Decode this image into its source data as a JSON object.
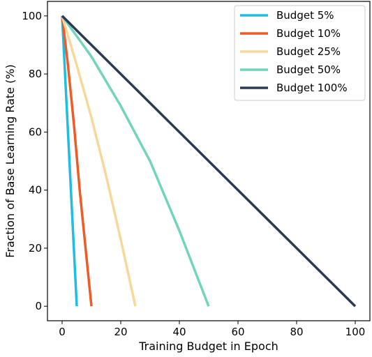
{
  "chart_data": {
    "type": "line",
    "title": "",
    "xlabel": "Training Budget in Epoch",
    "ylabel": "Fraction of Base Learning Rate (%)",
    "xlim": [
      -5,
      105
    ],
    "ylim": [
      -5,
      105
    ],
    "xticks": [
      0,
      20,
      40,
      60,
      80,
      100
    ],
    "yticks": [
      0,
      20,
      40,
      60,
      80,
      100
    ],
    "grid": false,
    "legend_position": "top-right",
    "series": [
      {
        "name": "Budget 5%",
        "color": "#1fbde0",
        "x": [
          0,
          1,
          2,
          3,
          4,
          5
        ],
        "y": [
          100,
          80,
          60,
          40,
          20,
          0
        ]
      },
      {
        "name": "Budget 10%",
        "color": "#f05a24",
        "x": [
          0,
          2,
          4,
          6,
          8,
          10
        ],
        "y": [
          100,
          83,
          63,
          40,
          20,
          0
        ]
      },
      {
        "name": "Budget 25%",
        "color": "#f8d898",
        "x": [
          0,
          5,
          10,
          15,
          20,
          25
        ],
        "y": [
          100,
          83,
          65,
          45,
          23,
          0
        ]
      },
      {
        "name": "Budget 50%",
        "color": "#72d4bb",
        "x": [
          0,
          10,
          20,
          30,
          40,
          50
        ],
        "y": [
          100,
          86,
          69,
          50,
          26,
          0
        ]
      },
      {
        "name": "Budget 100%",
        "color": "#2a3a55",
        "x": [
          0,
          20,
          40,
          60,
          80,
          100
        ],
        "y": [
          100,
          80,
          60,
          40,
          20,
          0
        ]
      }
    ]
  }
}
